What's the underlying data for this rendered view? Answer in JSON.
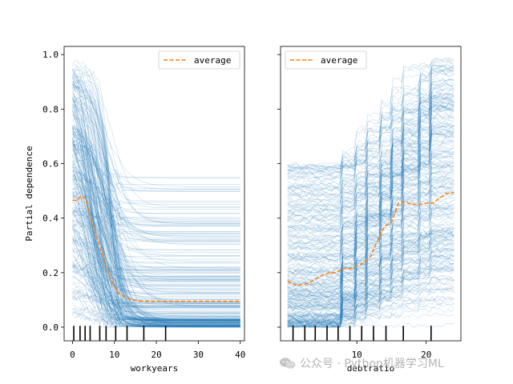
{
  "chart_data": [
    {
      "type": "line",
      "subtype": "ice-plot",
      "xlabel": "workyears",
      "ylabel": "Partial dependence",
      "xlim": [
        -2,
        41
      ],
      "ylim": [
        -0.05,
        1.03
      ],
      "xticks": [
        0,
        10,
        20,
        30,
        40
      ],
      "yticks": [
        0.0,
        0.2,
        0.4,
        0.6,
        0.8,
        1.0
      ],
      "ytick_labels": [
        "0.0",
        "0.2",
        "0.4",
        "0.6",
        "0.8",
        "1.0"
      ],
      "legend": {
        "entries": [
          "average"
        ],
        "placement": "top-right"
      },
      "rug": [
        0.3,
        1.8,
        3.0,
        4.2,
        6.5,
        8.0,
        10.3,
        13.0,
        17.0,
        22.2
      ],
      "series": [
        {
          "name": "average",
          "style": "dashed",
          "x": [
            0,
            1,
            2,
            3,
            4,
            5,
            6,
            7,
            8,
            9,
            10,
            11,
            12,
            14,
            17,
            20,
            30,
            40
          ],
          "values": [
            0.465,
            0.465,
            0.48,
            0.475,
            0.42,
            0.37,
            0.32,
            0.27,
            0.22,
            0.18,
            0.15,
            0.125,
            0.115,
            0.1,
            0.095,
            0.095,
            0.095,
            0.095
          ]
        }
      ]
    },
    {
      "type": "line",
      "subtype": "ice-plot",
      "xlabel": "debtratio",
      "xlim": [
        -1,
        25
      ],
      "ylim": [
        -0.05,
        1.03
      ],
      "xticks": [
        10,
        20
      ],
      "yticks": [
        0.0,
        0.2,
        0.4,
        0.6,
        0.8,
        1.0
      ],
      "legend": {
        "entries": [
          "average"
        ],
        "placement": "top-left"
      },
      "rug": [
        0.8,
        2.5,
        4.0,
        5.7,
        7.3,
        9.0,
        10.7,
        12.4,
        14.2,
        16.7,
        20.7
      ],
      "series": [
        {
          "name": "average",
          "style": "dashed",
          "x": [
            0,
            1,
            2,
            3,
            4,
            5,
            6,
            7,
            8,
            9,
            10,
            11,
            12,
            13,
            14,
            15,
            16,
            17,
            18,
            19,
            20,
            21,
            22,
            23,
            24
          ],
          "values": [
            0.17,
            0.155,
            0.155,
            0.16,
            0.175,
            0.19,
            0.2,
            0.2,
            0.215,
            0.215,
            0.225,
            0.235,
            0.26,
            0.32,
            0.37,
            0.385,
            0.455,
            0.46,
            0.45,
            0.45,
            0.455,
            0.455,
            0.475,
            0.49,
            0.495
          ]
        }
      ]
    }
  ],
  "watermark": {
    "text": "公众号 · Python机器学习ML",
    "icon": "wechat-icon"
  },
  "colors": {
    "ice": "#1f77b4",
    "average": "#ff7f0e"
  }
}
